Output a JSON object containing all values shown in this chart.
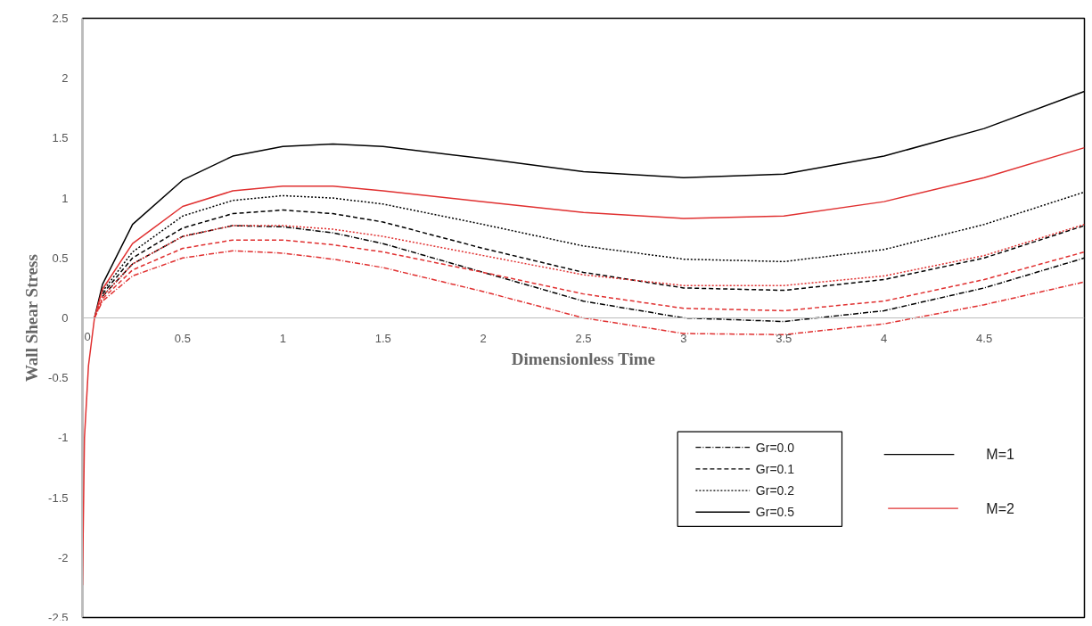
{
  "chart_data": {
    "type": "line",
    "xlabel": "Dimensionless Time",
    "ylabel": "Wall Shear Stress",
    "x": [
      0,
      0.01,
      0.03,
      0.06,
      0.1,
      0.25,
      0.5,
      0.75,
      1,
      1.25,
      1.5,
      2,
      2.5,
      3,
      3.5,
      4,
      4.5,
      5
    ],
    "series": [
      {
        "color": "#000000",
        "line_style": "dashdot",
        "values": [
          null,
          null,
          null,
          null,
          0.18,
          0.45,
          0.68,
          0.77,
          0.76,
          0.71,
          0.62,
          0.38,
          0.14,
          0.0,
          -0.03,
          0.06,
          0.25,
          0.5
        ]
      },
      {
        "color": "#000000",
        "line_style": "dashed",
        "values": [
          null,
          null,
          null,
          null,
          0.2,
          0.5,
          0.75,
          0.87,
          0.9,
          0.87,
          0.8,
          0.58,
          0.38,
          0.25,
          0.23,
          0.32,
          0.5,
          0.77
        ]
      },
      {
        "color": "#000000",
        "line_style": "dotted",
        "values": [
          null,
          null,
          null,
          null,
          0.22,
          0.55,
          0.85,
          0.98,
          1.02,
          1.0,
          0.95,
          0.78,
          0.6,
          0.49,
          0.47,
          0.57,
          0.78,
          1.05
        ]
      },
      {
        "color": "#000000",
        "line_style": "solid",
        "values": [
          null,
          null,
          null,
          0.0,
          0.28,
          0.78,
          1.15,
          1.35,
          1.43,
          1.45,
          1.43,
          1.33,
          1.22,
          1.17,
          1.2,
          1.35,
          1.58,
          1.89
        ]
      },
      {
        "color": "#e03030",
        "line_style": "dashdot",
        "values": [
          null,
          null,
          null,
          0.0,
          0.14,
          0.35,
          0.5,
          0.56,
          0.54,
          0.49,
          0.42,
          0.22,
          0.0,
          -0.13,
          -0.14,
          -0.05,
          0.11,
          0.3
        ]
      },
      {
        "color": "#e03030",
        "line_style": "dashed",
        "values": [
          null,
          null,
          null,
          0.0,
          0.16,
          0.4,
          0.58,
          0.65,
          0.65,
          0.61,
          0.55,
          0.38,
          0.2,
          0.08,
          0.06,
          0.14,
          0.32,
          0.55
        ]
      },
      {
        "color": "#e03030",
        "line_style": "dotted",
        "values": [
          null,
          null,
          null,
          0.0,
          0.18,
          0.45,
          0.68,
          0.77,
          0.77,
          0.74,
          0.68,
          0.52,
          0.36,
          0.27,
          0.27,
          0.35,
          0.52,
          0.78
        ]
      },
      {
        "color": "#e03030",
        "line_style": "solid",
        "values": [
          -2.23,
          -1.0,
          -0.4,
          0.0,
          0.24,
          0.62,
          0.93,
          1.06,
          1.1,
          1.1,
          1.06,
          0.97,
          0.88,
          0.83,
          0.85,
          0.97,
          1.17,
          1.42
        ]
      }
    ],
    "annotations": [
      "Gr=0.0",
      "Gr=0.1",
      "Gr=0.2",
      "Gr=0.5",
      "M=1",
      "M=2"
    ],
    "xlim": [
      0,
      5
    ],
    "ylim": [
      -2.5,
      2.5
    ],
    "xticks": [
      0,
      0.5,
      1,
      1.5,
      2,
      2.5,
      3,
      3.5,
      4,
      4.5
    ],
    "yticks": [
      -2.5,
      -2,
      -1.5,
      -1,
      -0.5,
      0,
      0.5,
      1,
      1.5,
      2,
      2.5
    ],
    "grid": false
  }
}
